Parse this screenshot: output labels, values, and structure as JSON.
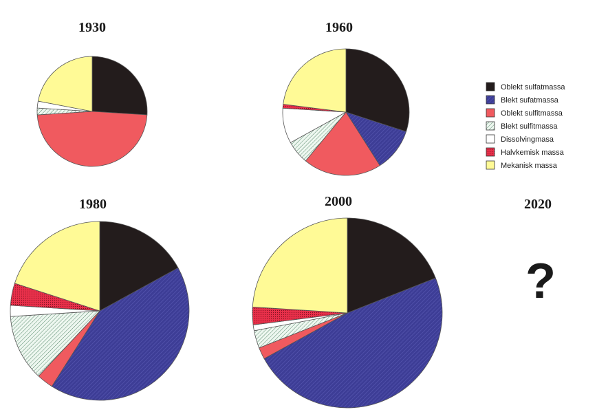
{
  "chart_data": [
    {
      "type": "pie",
      "title": "1930",
      "slices": [
        {
          "category": "Oblekt sulfatmassa",
          "value": 26
        },
        {
          "category": "Blekt sufatmassa",
          "value": 0
        },
        {
          "category": "Oblekt sulfitmassa",
          "value": 48
        },
        {
          "category": "Blekt sulfitmassa",
          "value": 2
        },
        {
          "category": "Dissolvingmasa",
          "value": 2
        },
        {
          "category": "Halvkemisk massa",
          "value": 0
        },
        {
          "category": "Mekanisk massa",
          "value": 22
        }
      ]
    },
    {
      "type": "pie",
      "title": "1960",
      "slices": [
        {
          "category": "Oblekt sulfatmassa",
          "value": 30
        },
        {
          "category": "Blekt sufatmassa",
          "value": 11
        },
        {
          "category": "Oblekt sulfitmassa",
          "value": 20
        },
        {
          "category": "Blekt sulfitmassa",
          "value": 6
        },
        {
          "category": "Dissolvingmasa",
          "value": 9
        },
        {
          "category": "Halvkemisk massa",
          "value": 1
        },
        {
          "category": "Mekanisk massa",
          "value": 23
        }
      ]
    },
    {
      "type": "pie",
      "title": "1980",
      "slices": [
        {
          "category": "Oblekt sulfatmassa",
          "value": 17
        },
        {
          "category": "Blekt sufatmassa",
          "value": 42
        },
        {
          "category": "Oblekt sulfitmassa",
          "value": 3
        },
        {
          "category": "Blekt sulfitmassa",
          "value": 12
        },
        {
          "category": "Dissolvingmasa",
          "value": 2
        },
        {
          "category": "Halvkemisk massa",
          "value": 4
        },
        {
          "category": "Mekanisk massa",
          "value": 20
        }
      ]
    },
    {
      "type": "pie",
      "title": "2000",
      "slices": [
        {
          "category": "Oblekt sulfatmassa",
          "value": 19
        },
        {
          "category": "Blekt sufatmassa",
          "value": 48
        },
        {
          "category": "Oblekt sulfitmassa",
          "value": 2
        },
        {
          "category": "Blekt sulfitmassa",
          "value": 3
        },
        {
          "category": "Dissolvingmasa",
          "value": 1
        },
        {
          "category": "Halvkemisk massa",
          "value": 3
        },
        {
          "category": "Mekanisk massa",
          "value": 24
        }
      ]
    }
  ],
  "legend": {
    "items": [
      {
        "label": "Oblekt  sulfatmassa",
        "color": "#231c1c",
        "pattern": "solid"
      },
      {
        "label": "Blekt  sufatmassa",
        "color": "#3d3d96",
        "pattern": "hatch"
      },
      {
        "label": "Oblekt  sulfitmassa",
        "color": "#f05a5f",
        "pattern": "solid"
      },
      {
        "label": "Blekt  sulfitmassa",
        "color": "#cfe8d8",
        "pattern": "hatch"
      },
      {
        "label": "Dissolvingmasa",
        "color": "#ffffff",
        "pattern": "solid"
      },
      {
        "label": "Halvkemisk  massa",
        "color": "#e8304a",
        "pattern": "dots"
      },
      {
        "label": "Mekanisk  massa",
        "color": "#fffa96",
        "pattern": "solid"
      }
    ]
  },
  "placeholder": {
    "year": "2020",
    "symbol": "?"
  }
}
